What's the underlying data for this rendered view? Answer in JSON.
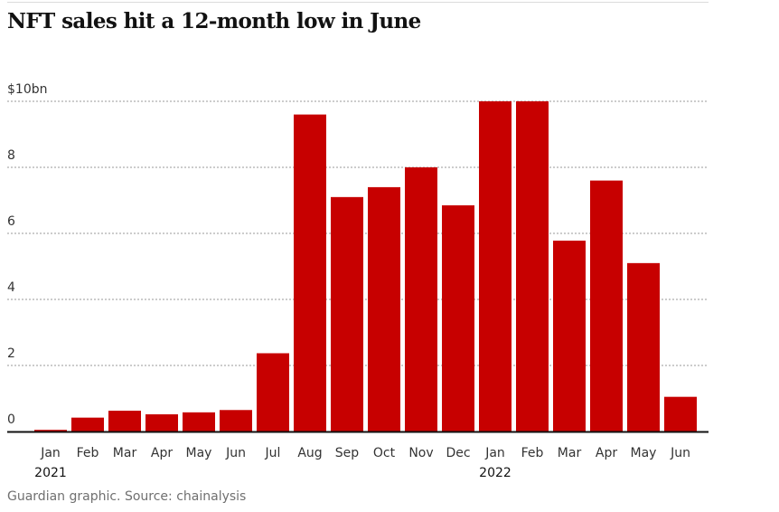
{
  "title": "NFT sales hit a 12-month low in June",
  "source": "Guardian graphic. Source: chainalysis",
  "colors": {
    "bar": "#c70000",
    "grid": "#999999",
    "axis": "#121212",
    "text": "#333333"
  },
  "chart_data": {
    "type": "bar",
    "title": "NFT sales hit a 12-month low in June",
    "categories": [
      "Jan",
      "Feb",
      "Mar",
      "Apr",
      "May",
      "Jun",
      "Jul",
      "Aug",
      "Sep",
      "Oct",
      "Nov",
      "Dec",
      "Jan",
      "Feb",
      "Mar",
      "Apr",
      "May",
      "Jun"
    ],
    "year_labels": [
      {
        "index": 0,
        "label": "2021"
      },
      {
        "index": 12,
        "label": "2022"
      }
    ],
    "values": [
      0.05,
      0.42,
      0.63,
      0.52,
      0.58,
      0.65,
      2.37,
      9.6,
      7.1,
      7.4,
      8.0,
      6.85,
      10.0,
      10.0,
      5.78,
      7.6,
      5.1,
      1.05
    ],
    "ylim": [
      0,
      10
    ],
    "yticks": [
      0,
      2,
      4,
      6,
      8,
      10
    ],
    "ytick_labels": [
      "0",
      "2",
      "4",
      "6",
      "8",
      "$10bn"
    ],
    "xlabel": "",
    "ylabel": "",
    "grid": true
  }
}
